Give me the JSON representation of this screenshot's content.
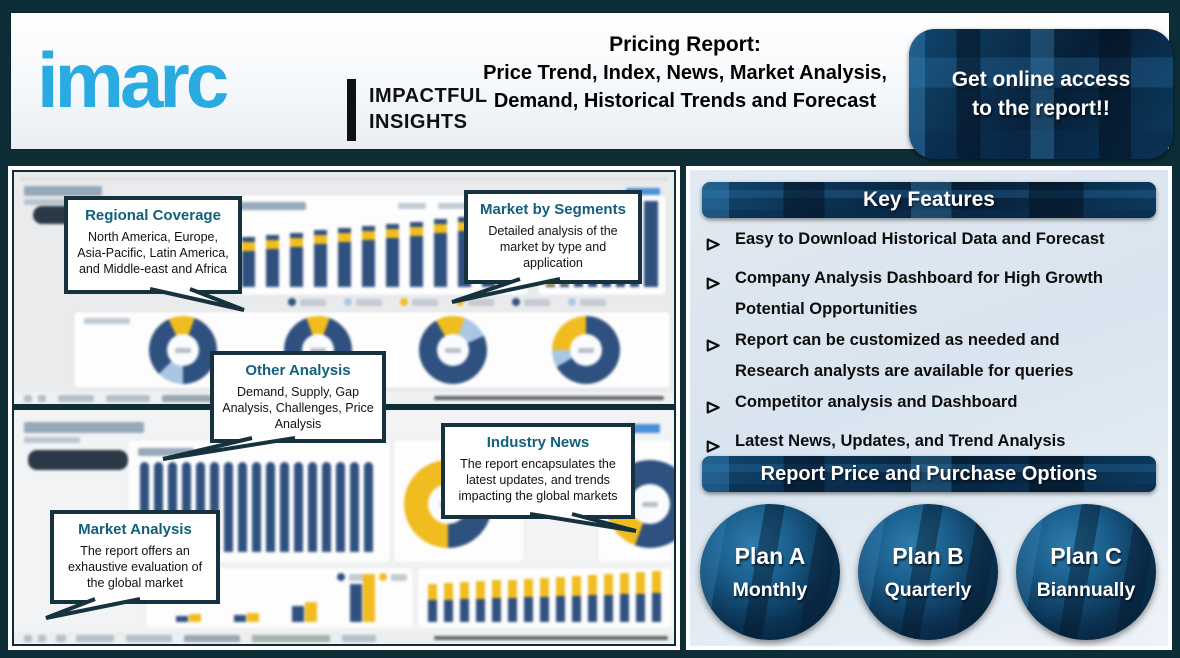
{
  "header": {
    "logo": {
      "brand": "imarc",
      "tagline_line1": "IMPACTFUL",
      "tagline_line2": "INSIGHTS"
    },
    "title_line1": "Pricing Report:",
    "title_rest": "Price Trend, Index, News, Market Analysis, Demand, Historical Trends and Forecast",
    "cta": "Get online access to the report!!"
  },
  "callouts": [
    {
      "title": "Regional Coverage",
      "body": "North America, Europe, Asia-Pacific, Latin America, and Middle-east and Africa"
    },
    {
      "title": "Market by Segments",
      "body": "Detailed analysis of the market by type and application"
    },
    {
      "title": "Other Analysis",
      "body": "Demand, Supply, Gap Analysis, Challenges, Price Analysis"
    },
    {
      "title": "Industry News",
      "body": "The report encapsulates the latest updates, and trends impacting the global markets"
    },
    {
      "title": "Market Analysis",
      "body": "The report offers an exhaustive evaluation of the global market"
    }
  ],
  "key_features": {
    "heading": "Key Features",
    "items": [
      "Easy to Download Historical Data and Forecast",
      "Company Analysis Dashboard for High Growth Potential Opportunities",
      "Report can be customized as needed and Research analysts are available for queries",
      "Competitor analysis and Dashboard",
      "Latest News, Updates, and Trend Analysis"
    ]
  },
  "pricing": {
    "heading": "Report Price and Purchase Options",
    "plans": [
      {
        "name": "Plan A",
        "period": "Monthly"
      },
      {
        "name": "Plan B",
        "period": "Quarterly"
      },
      {
        "name": "Plan C",
        "period": "Biannually"
      }
    ]
  },
  "colors": {
    "brand_blue": "#29abe2",
    "header_navy": "#0a2c4c",
    "panel_blue": "#d9e4ef",
    "outer_frame": "#0d2e36",
    "callout_title": "#12607c",
    "callout_border": "#16323e",
    "chart_navy": "#2f5180",
    "chart_yellow": "#f0bc20",
    "chart_lightblue": "#a9c7e4"
  }
}
